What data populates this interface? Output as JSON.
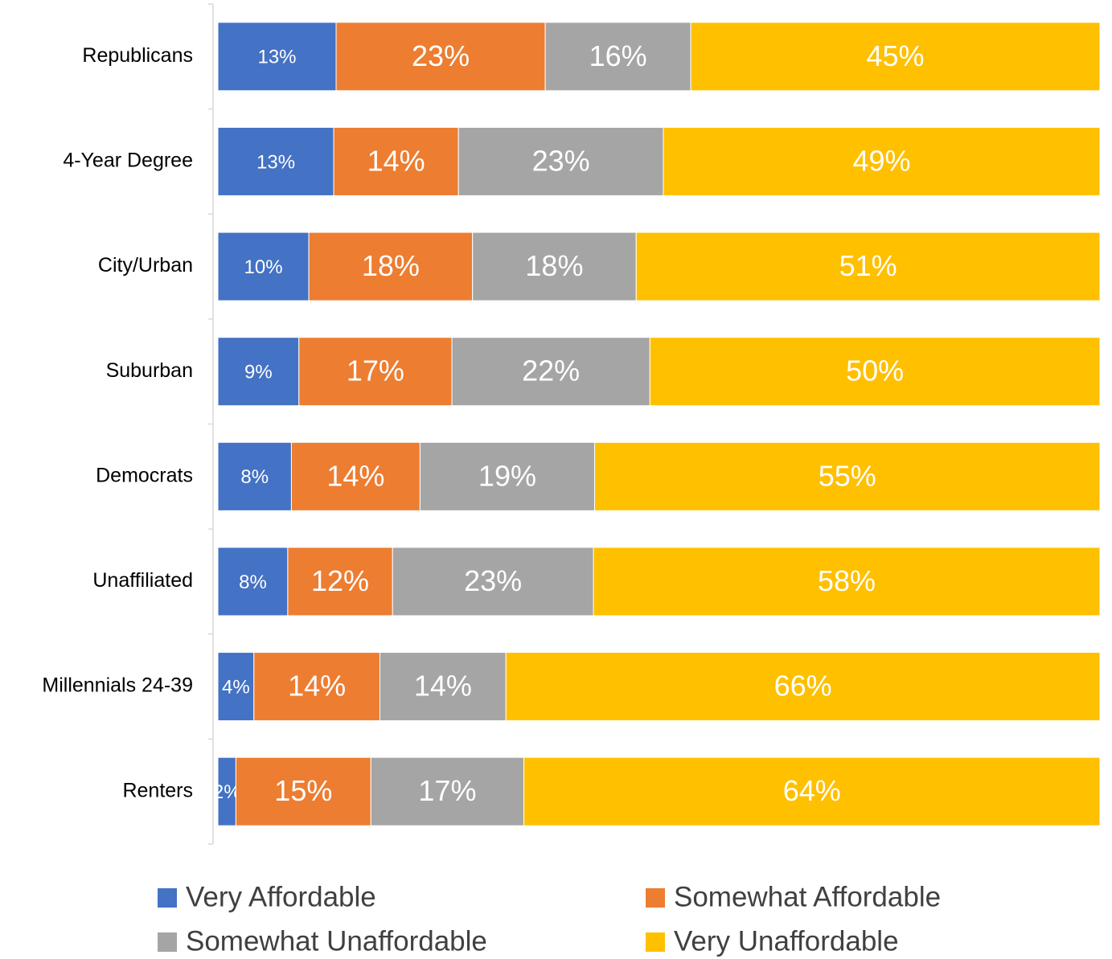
{
  "chart_data": {
    "type": "bar",
    "orientation": "horizontal",
    "stacking": "percent",
    "categories": [
      "Republicans",
      "4-Year Degree",
      "City/Urban",
      "Suburban",
      "Democrats",
      "Unaffiliated",
      "Millennials 24-39",
      "Renters"
    ],
    "series": [
      {
        "name": "Very Affordable",
        "color": "#4472c4",
        "values": [
          13,
          13,
          10,
          9,
          8,
          8,
          4,
          2
        ],
        "value_labels": [
          "13%",
          "13%",
          "10%",
          "9%",
          "8%",
          "8%",
          "4%",
          "2%"
        ]
      },
      {
        "name": "Somewhat Affordable",
        "color": "#ed7d31",
        "values": [
          23,
          14,
          18,
          17,
          14,
          12,
          14,
          15
        ],
        "value_labels": [
          "23%",
          "14%",
          "18%",
          "17%",
          "14%",
          "12%",
          "14%",
          "15%"
        ]
      },
      {
        "name": "Somewhat Unaffordable",
        "color": "#a5a5a5",
        "values": [
          16,
          23,
          18,
          22,
          19,
          23,
          14,
          17
        ],
        "value_labels": [
          "16%",
          "23%",
          "18%",
          "22%",
          "19%",
          "23%",
          "14%",
          "17%"
        ]
      },
      {
        "name": "Very Unaffordable",
        "color": "#ffc000",
        "values": [
          45,
          49,
          51,
          50,
          55,
          58,
          66,
          64
        ],
        "value_labels": [
          "45%",
          "49%",
          "51%",
          "50%",
          "55%",
          "58%",
          "66%",
          "64%"
        ]
      }
    ],
    "legend": "bottom"
  }
}
